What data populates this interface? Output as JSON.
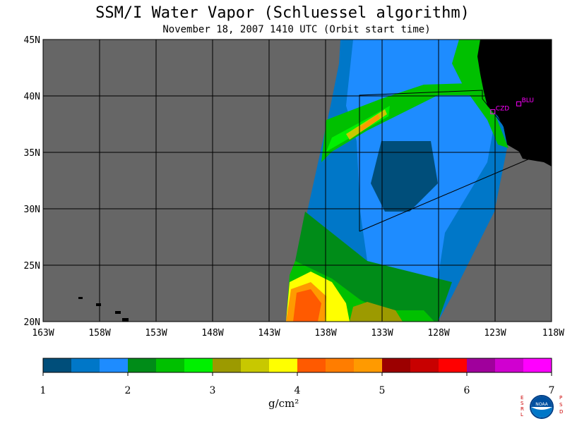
{
  "title": "SSM/I Water Vapor (Schluessel algorithm)",
  "subtitle": "November 18, 2007  1410 UTC  (Orbit start time)",
  "map": {
    "lat_labels": [
      "45N",
      "40N",
      "35N",
      "30N",
      "25N",
      "20N"
    ],
    "lon_labels": [
      "163W",
      "158W",
      "153W",
      "148W",
      "143W",
      "138W",
      "133W",
      "128W",
      "123W",
      "118W"
    ],
    "lat_range": [
      20,
      45
    ],
    "lon_range": [
      -163,
      -118
    ],
    "stations": [
      {
        "name": "CZD",
        "lat": 38.6,
        "lon": -123.2
      },
      {
        "name": "BLU",
        "lat": 39.3,
        "lon": -120.9
      }
    ],
    "colors": {
      "no_data": "#666666",
      "land": "#000000",
      "grid": "#000000"
    }
  },
  "colorbar": {
    "colors": [
      "#004e7a",
      "#0077c8",
      "#1e8cff",
      "#008c18",
      "#00c000",
      "#00f000",
      "#9c9a00",
      "#c8c800",
      "#ffff00",
      "#ff5a00",
      "#ff7d00",
      "#ff9a00",
      "#9c0000",
      "#c80000",
      "#ff0000",
      "#a0009c",
      "#d000d0",
      "#ff00ff"
    ],
    "tick_labels": [
      "1",
      "2",
      "3",
      "4",
      "5",
      "6",
      "7"
    ],
    "units": "g/cm²"
  },
  "logo": {
    "left_text": "ESRL",
    "center_text": "NOAA",
    "right_text": "PSD"
  }
}
